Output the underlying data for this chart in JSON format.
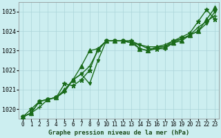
{
  "title": "Graphe pression niveau de la mer (hPa)",
  "background_color": "#cceef0",
  "grid_color": "#aad4d8",
  "xlim": [
    -0.5,
    23.5
  ],
  "ylim": [
    1019.5,
    1025.5
  ],
  "yticks": [
    1020,
    1021,
    1022,
    1023,
    1024,
    1025
  ],
  "xticks": [
    0,
    1,
    2,
    3,
    4,
    5,
    6,
    7,
    8,
    9,
    10,
    11,
    12,
    13,
    14,
    15,
    16,
    17,
    18,
    19,
    20,
    21,
    22,
    23
  ],
  "series": [
    {
      "y": [
        1019.6,
        1019.8,
        1020.1,
        1020.5,
        1020.6,
        1020.9,
        1021.5,
        1021.8,
        1022.2,
        1023.0,
        1023.5,
        1023.5,
        1023.5,
        1023.5,
        1023.3,
        1023.2,
        1023.2,
        1023.3,
        1023.5,
        1023.6,
        1023.8,
        1024.2,
        1024.5,
        1024.8
      ],
      "color": "#1a6b1a",
      "marker": "+",
      "ms": 4,
      "lw": 1.0,
      "zorder": 4
    },
    {
      "y": [
        1019.6,
        1020.0,
        1020.4,
        1020.5,
        1020.6,
        1021.3,
        1021.2,
        1021.5,
        1022.0,
        1023.1,
        1023.5,
        1023.5,
        1023.5,
        1023.5,
        1023.1,
        1023.0,
        1023.1,
        1023.2,
        1023.5,
        1023.7,
        1023.9,
        1024.5,
        1025.1,
        1024.6
      ],
      "color": "#1a6b1a",
      "marker": "*",
      "ms": 5,
      "lw": 1.0,
      "zorder": 5
    },
    {
      "y": [
        1019.6,
        1019.8,
        1020.4,
        1020.5,
        1020.6,
        1021.0,
        1021.5,
        1022.2,
        1023.0,
        1023.1,
        1023.5,
        1023.5,
        1023.5,
        1023.4,
        1023.1,
        1023.0,
        1023.2,
        1023.2,
        1023.4,
        1023.5,
        1023.8,
        1024.0,
        1024.6,
        1025.2
      ],
      "color": "#1a6b1a",
      "marker": "^",
      "ms": 4,
      "lw": 1.0,
      "zorder": 3
    },
    {
      "y": [
        1019.6,
        1019.8,
        1020.4,
        1020.5,
        1020.6,
        1020.9,
        1021.5,
        1021.8,
        1021.3,
        1022.5,
        1023.5,
        1023.5,
        1023.5,
        1023.4,
        1023.3,
        1023.1,
        1023.1,
        1023.1,
        1023.4,
        1023.6,
        1023.8,
        1024.0,
        1024.4,
        1025.0
      ],
      "color": "#1a6b1a",
      "marker": "v",
      "ms": 3,
      "lw": 1.0,
      "zorder": 2
    }
  ]
}
